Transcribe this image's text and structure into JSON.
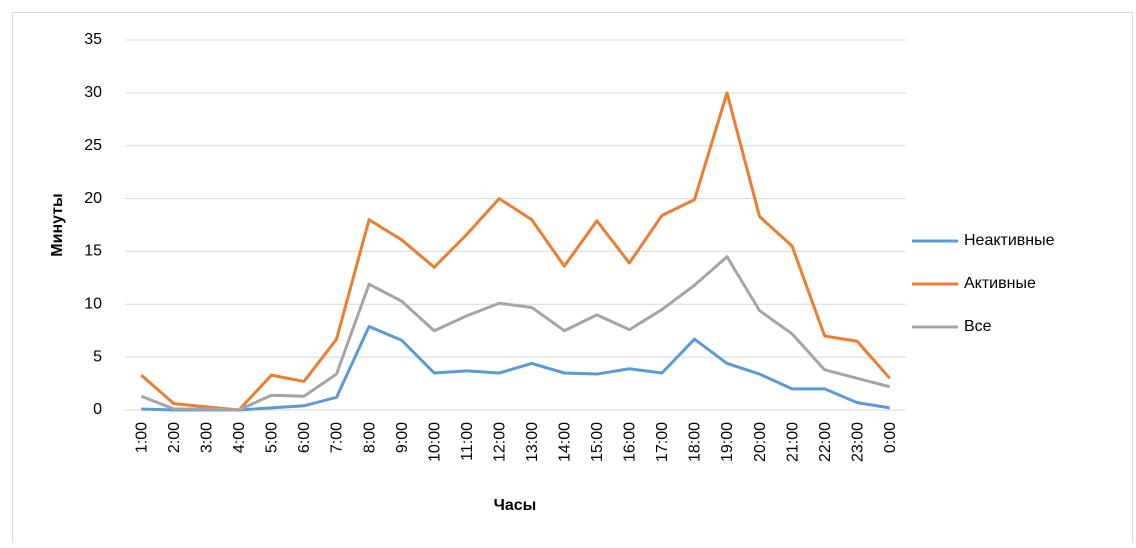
{
  "chart_data": {
    "type": "line",
    "y_label": "Минуты",
    "x_label": "Часы",
    "categories": [
      "1:00",
      "2:00",
      "3:00",
      "4:00",
      "5:00",
      "6:00",
      "7:00",
      "8:00",
      "9:00",
      "10:00",
      "11:00",
      "12:00",
      "13:00",
      "14:00",
      "15:00",
      "16:00",
      "17:00",
      "18:00",
      "19:00",
      "20:00",
      "21:00",
      "22:00",
      "23:00",
      "0:00"
    ],
    "series": [
      {
        "name": "Неактивные",
        "color": "#5b9bd5",
        "values": [
          0.1,
          0,
          0,
          0,
          0.2,
          0.4,
          1.2,
          7.9,
          6.6,
          3.5,
          3.7,
          3.5,
          4.4,
          3.5,
          3.4,
          3.9,
          3.5,
          6.7,
          4.4,
          3.4,
          2.0,
          2.0,
          0.7,
          0.2
        ]
      },
      {
        "name": "Активные",
        "color": "#ed7d31",
        "values": [
          3.3,
          0.6,
          0.3,
          0,
          3.3,
          2.7,
          6.7,
          18.0,
          16.1,
          13.5,
          16.6,
          20.0,
          18.0,
          13.6,
          17.9,
          13.9,
          18.4,
          19.9,
          30.0,
          18.3,
          15.5,
          7.0,
          6.5,
          3.0
        ]
      },
      {
        "name": "Все",
        "color": "#a5a5a5",
        "values": [
          1.3,
          0.1,
          0.1,
          0,
          1.4,
          1.3,
          3.4,
          11.9,
          10.3,
          7.5,
          8.9,
          10.1,
          9.7,
          7.5,
          9.0,
          7.6,
          9.5,
          11.8,
          14.5,
          9.4,
          7.2,
          3.8,
          3.0,
          2.2
        ]
      }
    ],
    "ylim": [
      0,
      35
    ],
    "yticks": [
      0,
      5,
      10,
      15,
      20,
      25,
      30,
      35
    ],
    "grid": true,
    "legend": "right"
  }
}
